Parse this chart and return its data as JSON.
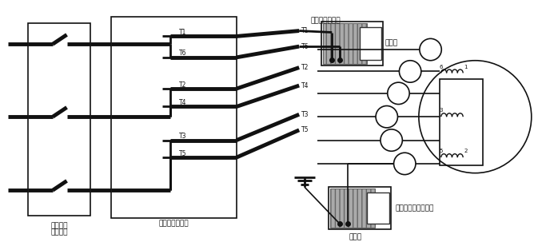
{
  "bg_color": "#ffffff",
  "line_color": "#111111",
  "gray_color": "#888888",
  "white": "#ffffff",
  "labels": {
    "main_breaker": "主断路器",
    "main_breaker2": "（开启）",
    "starter": "启动器（开启）",
    "winding_res": "绕组之间的电阻",
    "megohm1": "兆欧表",
    "megohm2": "兆欧表",
    "ground_res": "每个绕组的对地电阻"
  },
  "terminal_labels": [
    "T1",
    "T6",
    "T2",
    "T4",
    "T3",
    "T5"
  ],
  "output_labels_left": [
    "T1",
    "T6",
    "T2",
    "T4",
    "T3",
    "T5"
  ],
  "coil_numbers": [
    "6",
    "1",
    "3",
    "",
    "5",
    "2"
  ]
}
